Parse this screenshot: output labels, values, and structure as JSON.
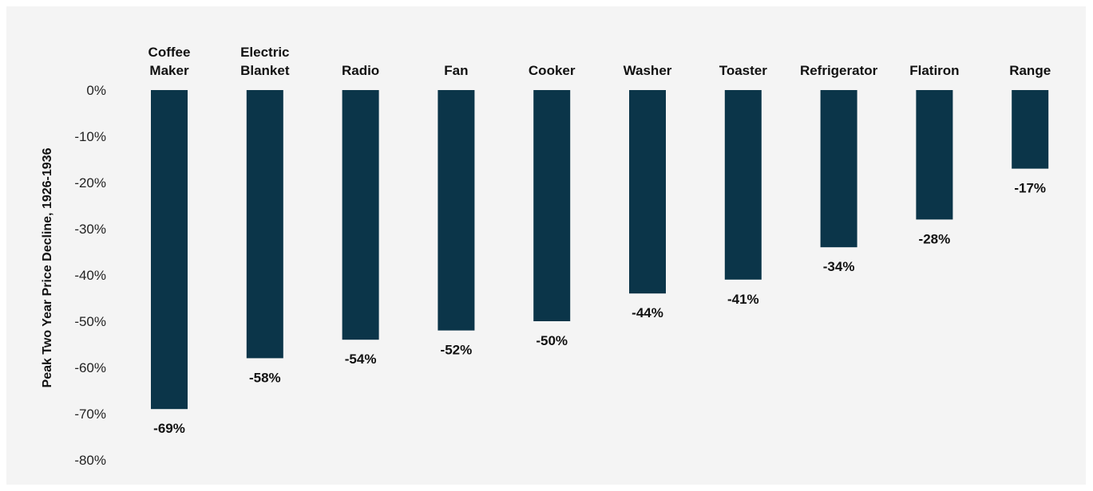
{
  "colors": {
    "bar": "#0b3549",
    "background": "#f4f4f4",
    "text": "#111111"
  },
  "chart_data": {
    "type": "bar",
    "title": "",
    "xlabel": "",
    "ylabel": "Peak Two Year Price Decline, 1926-1936",
    "categories": [
      [
        "Coffee",
        "Maker"
      ],
      [
        "Electric",
        "Blanket"
      ],
      [
        "Radio"
      ],
      [
        "Fan"
      ],
      [
        "Cooker"
      ],
      [
        "Washer"
      ],
      [
        "Toaster"
      ],
      [
        "Refrigerator"
      ],
      [
        "Flatiron"
      ],
      [
        "Range"
      ]
    ],
    "values": [
      -69,
      -58,
      -54,
      -52,
      -50,
      -44,
      -41,
      -34,
      -28,
      -17
    ],
    "data_labels": [
      "-69%",
      "-58%",
      "-54%",
      "-52%",
      "-50%",
      "-44%",
      "-41%",
      "-34%",
      "-28%",
      "-17%"
    ],
    "ylim": [
      -80,
      0
    ],
    "yticks": [
      0,
      -10,
      -20,
      -30,
      -40,
      -50,
      -60,
      -70,
      -80
    ],
    "ytick_labels": [
      "0%",
      "-10%",
      "-20%",
      "-30%",
      "-40%",
      "-50%",
      "-60%",
      "-70%",
      "-80%"
    ],
    "grid": false,
    "legend": "none",
    "category_axis_position": "top"
  }
}
